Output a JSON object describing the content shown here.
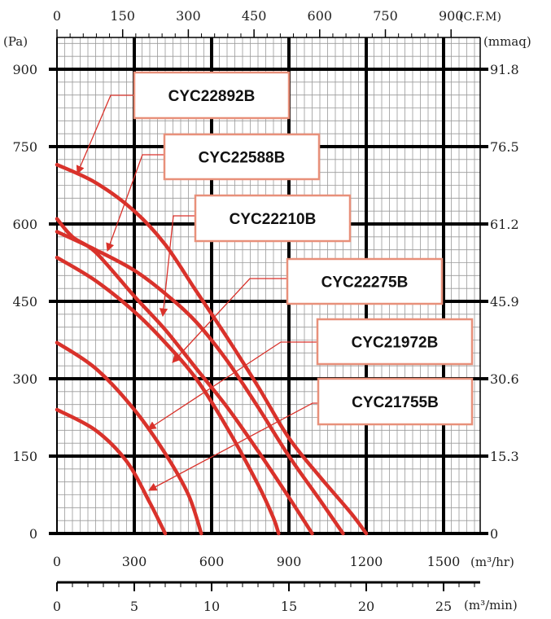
{
  "chart_data": {
    "type": "line",
    "title": "",
    "x_axis_bottom": {
      "unit_label": "(m³/hr)",
      "range": [
        0,
        1500
      ],
      "ticks": [
        "0",
        "300",
        "600",
        "900",
        "1200",
        "1500"
      ]
    },
    "x_axis_min": {
      "unit_label": "(m³/min)",
      "ticks": [
        "0",
        "5",
        "10",
        "15",
        "20",
        "25"
      ]
    },
    "x_axis_top": {
      "unit_label": "(C.F.M)",
      "ticks": [
        "0",
        "150",
        "300",
        "450",
        "600",
        "750",
        "900"
      ]
    },
    "y_axis_left": {
      "unit_label": "(Pa)",
      "range": [
        0,
        900
      ],
      "ticks": [
        "0",
        "150",
        "300",
        "450",
        "600",
        "750",
        "900"
      ]
    },
    "y_axis_right": {
      "unit_label": "(mmaq)",
      "ticks": [
        "0",
        "15.3",
        "30.6",
        "45.9",
        "61.2",
        "76.5",
        "91.8"
      ]
    },
    "grid": true,
    "series": [
      {
        "name": "CYC22892B",
        "points": [
          [
            0,
            715
          ],
          [
            150,
            680
          ],
          [
            300,
            625
          ],
          [
            420,
            560
          ],
          [
            540,
            470
          ],
          [
            660,
            380
          ],
          [
            780,
            285
          ],
          [
            900,
            185
          ],
          [
            1020,
            110
          ],
          [
            1140,
            40
          ],
          [
            1200,
            0
          ]
        ]
      },
      {
        "name": "CYC22588B",
        "points": [
          [
            0,
            585
          ],
          [
            150,
            550
          ],
          [
            300,
            510
          ],
          [
            420,
            465
          ],
          [
            540,
            410
          ],
          [
            660,
            335
          ],
          [
            780,
            245
          ],
          [
            900,
            150
          ],
          [
            1020,
            65
          ],
          [
            1110,
            0
          ]
        ]
      },
      {
        "name": "CYC22210B",
        "points": [
          [
            0,
            610
          ],
          [
            60,
            575
          ],
          [
            150,
            545
          ],
          [
            300,
            460
          ],
          [
            420,
            395
          ],
          [
            540,
            320
          ],
          [
            660,
            245
          ],
          [
            780,
            160
          ],
          [
            900,
            70
          ],
          [
            990,
            0
          ]
        ]
      },
      {
        "name": "CYC22275B",
        "points": [
          [
            0,
            535
          ],
          [
            150,
            490
          ],
          [
            300,
            430
          ],
          [
            420,
            370
          ],
          [
            540,
            300
          ],
          [
            660,
            205
          ],
          [
            780,
            95
          ],
          [
            840,
            30
          ],
          [
            860,
            0
          ]
        ]
      },
      {
        "name": "CYC21972B",
        "points": [
          [
            0,
            370
          ],
          [
            150,
            320
          ],
          [
            300,
            240
          ],
          [
            420,
            155
          ],
          [
            510,
            75
          ],
          [
            560,
            0
          ]
        ]
      },
      {
        "name": "CYC21755B",
        "points": [
          [
            0,
            240
          ],
          [
            150,
            200
          ],
          [
            270,
            140
          ],
          [
            360,
            60
          ],
          [
            420,
            0
          ]
        ]
      }
    ],
    "labels": [
      {
        "text": "CYC22892B",
        "color": "#e8907a"
      },
      {
        "text": "CYC22588B",
        "color": "#e8907a"
      },
      {
        "text": "CYC22210B",
        "color": "#e8907a"
      },
      {
        "text": "CYC22275B",
        "color": "#e8907a"
      },
      {
        "text": "CYC21972B",
        "color": "#e8907a"
      },
      {
        "text": "CYC21755B",
        "color": "#e8907a"
      }
    ],
    "curve_color": "#d9322b",
    "grid_color": "#9a9a9a"
  }
}
